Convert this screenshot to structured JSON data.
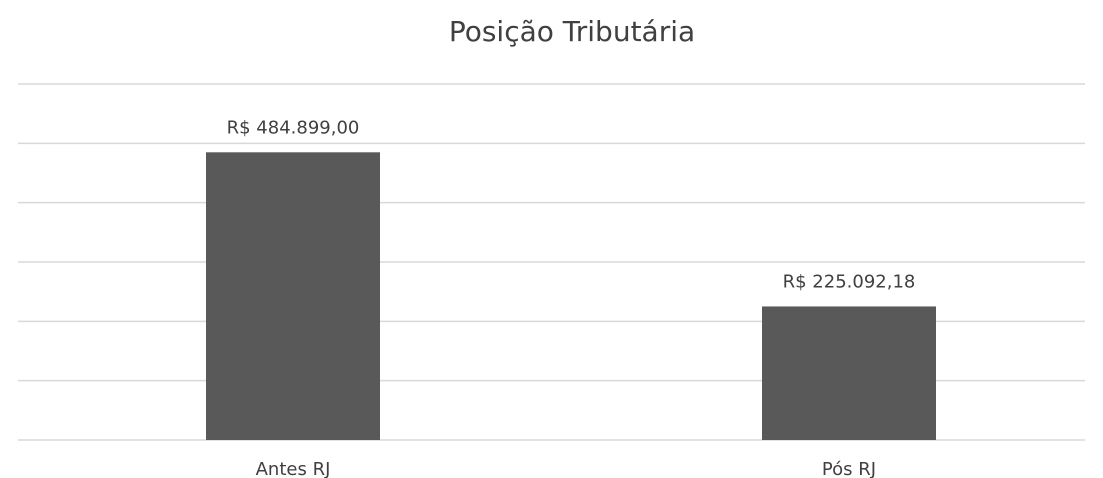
{
  "chart_data": {
    "type": "bar",
    "title": "Posição Tributária",
    "categories": [
      "Antes RJ",
      "Pós RJ"
    ],
    "values": [
      484899,
      225092.18
    ],
    "value_labels": [
      "R$ 484.899,00",
      "R$ 225.092,18"
    ],
    "color": "#595959",
    "ylim": [
      0,
      600000
    ],
    "yticks": [
      0,
      100000,
      200000,
      300000,
      400000,
      500000,
      600000
    ],
    "grid": true
  }
}
